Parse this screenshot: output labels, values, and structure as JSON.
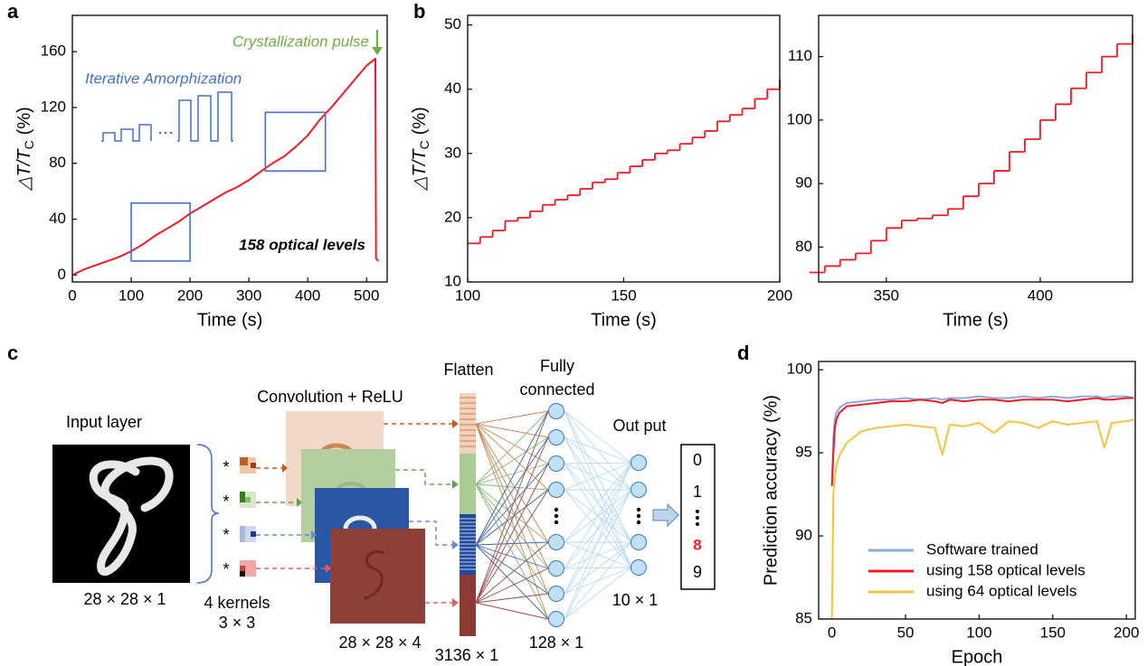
{
  "panel_labels": [
    "a",
    "b",
    "c",
    "d"
  ],
  "chart_data": [
    {
      "type": "line",
      "xlabel": "Time (s)",
      "ylabel": {
        "main": "△T/T",
        "sub": "C",
        "unit": "(%)"
      },
      "x": [
        0,
        20,
        40,
        60,
        80,
        100,
        120,
        140,
        160,
        180,
        200,
        220,
        240,
        260,
        280,
        300,
        320,
        340,
        360,
        380,
        400,
        420,
        440,
        460,
        480,
        500,
        515,
        516,
        520
      ],
      "values": [
        0,
        4,
        7,
        10,
        13,
        17,
        22,
        28,
        33,
        38,
        44,
        49,
        54,
        59,
        63,
        68,
        74,
        80,
        85,
        92,
        100,
        111,
        120,
        130,
        140,
        150,
        155,
        12,
        10
      ],
      "color": "#ee1c25",
      "xlim": [
        0,
        535
      ],
      "xticks": [
        0,
        100,
        200,
        300,
        400,
        500
      ],
      "ylim": [
        -5,
        186
      ],
      "yticks": [
        0,
        40,
        80,
        120,
        160
      ],
      "annotations": [
        {
          "text": "Crystallization pulse",
          "color": "#70ad47"
        },
        {
          "text": "Iterative Amorphization",
          "color": "#4472c4"
        },
        {
          "text": "158 optical levels",
          "color": "#000000"
        }
      ]
    },
    {
      "type": "line",
      "step": true,
      "xlabel": "Time (s)",
      "ylabel": {
        "main": "△T/T",
        "sub": "C",
        "unit": "(%)"
      },
      "x": [
        100,
        104,
        108,
        112,
        116,
        120,
        124,
        128,
        132,
        136,
        140,
        144,
        148,
        152,
        156,
        160,
        164,
        168,
        172,
        176,
        180,
        184,
        188,
        192,
        196,
        200
      ],
      "values": [
        16,
        17,
        18,
        19.5,
        20,
        21,
        22,
        22.8,
        23.5,
        24.5,
        25.5,
        26,
        27,
        28,
        29,
        30,
        30.5,
        31.5,
        32.5,
        33.5,
        35,
        36,
        37,
        38.5,
        40,
        41.5
      ],
      "color": "#ee1c25",
      "xlim": [
        100,
        200
      ],
      "xticks": [
        100,
        150,
        200
      ],
      "ylim": [
        10,
        51.5
      ],
      "yticks": [
        10,
        20,
        30,
        40,
        50
      ]
    },
    {
      "type": "line",
      "step": true,
      "xlabel": "Time (s)",
      "x": [
        325,
        330,
        335,
        340,
        345,
        350,
        355,
        360,
        365,
        370,
        375,
        380,
        385,
        390,
        395,
        400,
        405,
        410,
        415,
        420,
        425,
        430
      ],
      "values": [
        76,
        77,
        78,
        79,
        81,
        83,
        84.2,
        84.5,
        85,
        86,
        88,
        90,
        92,
        95,
        97,
        100,
        102.5,
        105,
        107.5,
        110,
        112,
        113.5
      ],
      "color": "#ee1c25",
      "xlim": [
        328,
        430
      ],
      "xticks": [
        350,
        400
      ],
      "ylim": [
        74.5,
        116.5
      ],
      "yticks": [
        80,
        90,
        100,
        110
      ]
    },
    {
      "type": "line",
      "xlabel": "Epoch",
      "ylabel": "Prediction accuracy (%)",
      "legend": "lower center",
      "x": [
        0,
        1,
        2,
        3,
        5,
        10,
        20,
        30,
        40,
        50,
        60,
        70,
        75,
        80,
        90,
        100,
        110,
        120,
        130,
        140,
        150,
        160,
        170,
        180,
        185,
        190,
        200,
        205
      ],
      "series": [
        {
          "name": "Software trained",
          "color": "#8faadc",
          "values": [
            93,
            96,
            97,
            97.4,
            97.7,
            98,
            98.1,
            98.2,
            98.2,
            98.3,
            98.2,
            98.3,
            98.2,
            98.3,
            98.3,
            98.4,
            98.3,
            98.3,
            98.4,
            98.3,
            98.4,
            98.3,
            98.4,
            98.4,
            98.3,
            98.4,
            98.4,
            98.3
          ]
        },
        {
          "name": "using 158 optical levels",
          "color": "#ee1c25",
          "values": [
            93,
            95,
            96.5,
            97,
            97.4,
            97.8,
            97.9,
            98,
            98.1,
            98.1,
            98.2,
            98.1,
            98,
            98.2,
            98.1,
            98.2,
            98.2,
            98.1,
            98.2,
            98.2,
            98.2,
            98.1,
            98.2,
            98.3,
            98.2,
            98.2,
            98.3,
            98.3
          ]
        },
        {
          "name": "using 64 optical levels",
          "color": "#f5c342",
          "values": [
            85,
            92.5,
            93.5,
            94.2,
            94.8,
            95.6,
            96.3,
            96.5,
            96.6,
            96.7,
            96.6,
            96.5,
            94.9,
            96.7,
            96.6,
            96.8,
            96.2,
            96.9,
            96.8,
            96.5,
            96.9,
            96.7,
            96.8,
            96.9,
            95.3,
            96.8,
            96.9,
            97
          ]
        }
      ],
      "xlim": [
        -9,
        206
      ],
      "xticks": [
        0,
        50,
        100,
        150,
        200
      ],
      "ylim": [
        85,
        100.5
      ],
      "yticks": [
        85,
        90,
        95,
        100
      ]
    }
  ],
  "diagram": {
    "input": {
      "title": "Input layer",
      "size": "28 × 28 × 1"
    },
    "kernels": {
      "operator": "*",
      "count": "4 kernels",
      "size": "3 × 3"
    },
    "convolution": {
      "title": "Convolution + ReLU",
      "size": "28 × 28 × 4"
    },
    "flatten": {
      "title": "Flatten",
      "size": "3136 × 1"
    },
    "fully_connected": {
      "title": [
        "Fully",
        "connected"
      ],
      "size": "128 × 1"
    },
    "output": {
      "title": "Out put",
      "size": "10 × 1",
      "digits": [
        "0",
        "1",
        "8",
        "9"
      ]
    }
  }
}
